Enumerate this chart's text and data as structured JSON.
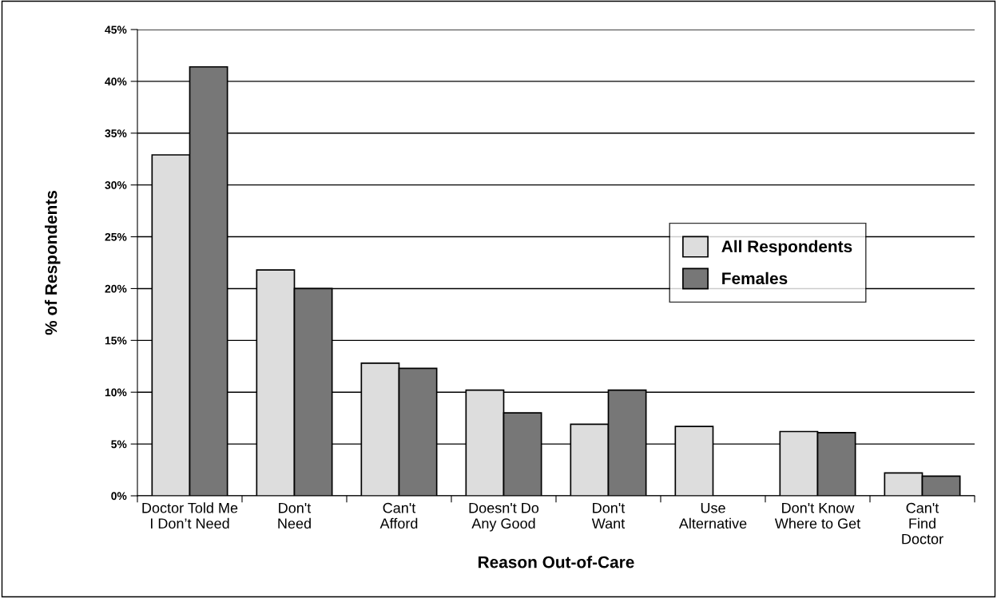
{
  "chart_data": {
    "type": "bar",
    "xlabel": "Reason Out-of-Care",
    "ylabel": "% of Respondents",
    "categories": [
      "Doctor Told Me\nI Don’t Need",
      "Don't\nNeed",
      "Can't\nAfford",
      "Doesn't Do\nAny Good",
      "Don't\nWant",
      "Use\nAlternative",
      "Don't Know\nWhere to Get",
      "Can't\nFind\nDoctor"
    ],
    "series": [
      {
        "name": "All Respondents",
        "color": "#dddddd",
        "values": [
          32.9,
          21.8,
          12.8,
          10.2,
          6.9,
          6.7,
          6.2,
          2.2
        ]
      },
      {
        "name": "Females",
        "color": "#777777",
        "values": [
          41.4,
          20.0,
          12.3,
          8.0,
          10.2,
          null,
          6.1,
          1.9
        ]
      }
    ],
    "ylim": [
      0,
      45
    ],
    "yticks": [
      {
        "value": 0,
        "label": "0%"
      },
      {
        "value": 5,
        "label": "5%"
      },
      {
        "value": 10,
        "label": "10%"
      },
      {
        "value": 15,
        "label": "15%"
      },
      {
        "value": 20,
        "label": "20%"
      },
      {
        "value": 25,
        "label": "25%"
      },
      {
        "value": 30,
        "label": "30%"
      },
      {
        "value": 35,
        "label": "35%"
      },
      {
        "value": 40,
        "label": "40%"
      },
      {
        "value": 45,
        "label": "45%"
      }
    ],
    "grid": "y",
    "legend": "center right"
  }
}
